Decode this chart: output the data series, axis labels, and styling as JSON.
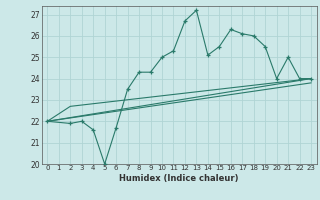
{
  "title": "",
  "xlabel": "Humidex (Indice chaleur)",
  "xlim": [
    -0.5,
    23.5
  ],
  "ylim": [
    20,
    27.4
  ],
  "yticks": [
    20,
    21,
    22,
    23,
    24,
    25,
    26,
    27
  ],
  "xticks": [
    0,
    1,
    2,
    3,
    4,
    5,
    6,
    7,
    8,
    9,
    10,
    11,
    12,
    13,
    14,
    15,
    16,
    17,
    18,
    19,
    20,
    21,
    22,
    23
  ],
  "bg_color": "#cce8e8",
  "grid_color": "#b0d4d4",
  "line_color": "#2a7a6a",
  "main_line_x": [
    0,
    2,
    3,
    4,
    5,
    6,
    7,
    8,
    9,
    10,
    11,
    12,
    13,
    14,
    15,
    16,
    17,
    18,
    19,
    20,
    21,
    22,
    23
  ],
  "main_line_y": [
    22.0,
    21.9,
    22.0,
    21.6,
    20.0,
    21.7,
    23.5,
    24.3,
    24.3,
    25.0,
    25.3,
    26.7,
    27.2,
    25.1,
    25.5,
    26.3,
    26.1,
    26.0,
    25.5,
    24.0,
    25.0,
    24.0,
    24.0
  ],
  "line2_x": [
    0,
    2,
    23
  ],
  "line2_y": [
    22.0,
    22.7,
    24.0
  ],
  "line3_x": [
    0,
    23
  ],
  "line3_y": [
    22.0,
    23.8
  ],
  "line4_x": [
    0,
    23
  ],
  "line4_y": [
    22.0,
    24.0
  ]
}
